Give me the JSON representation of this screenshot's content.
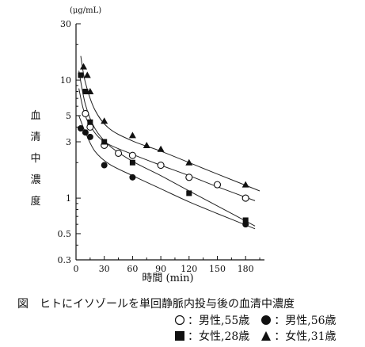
{
  "chart_data": {
    "type": "scatter",
    "y_scale": "log",
    "ylim": [
      0.3,
      30
    ],
    "xlim": [
      0,
      200
    ],
    "x_ticks": [
      "0",
      "30",
      "60",
      "90",
      "120",
      "150",
      "180"
    ],
    "y_ticks": [
      "0.3",
      "0.5",
      "1",
      "3",
      "5",
      "10",
      "30"
    ],
    "y_unit": "(μg/mL)",
    "ylabel": "血清中濃度",
    "xlabel": "時間 (min)",
    "series": [
      {
        "name": "男性,55歳",
        "marker": "open-circle",
        "x": [
          10,
          15,
          30,
          45,
          60,
          90,
          120,
          150,
          180
        ],
        "y": [
          5.2,
          4.0,
          2.8,
          2.4,
          2.3,
          1.9,
          1.5,
          1.3,
          1.0
        ],
        "curve_x": [
          3,
          8,
          15,
          30,
          60,
          90,
          120,
          150,
          190
        ],
        "curve_y": [
          8.5,
          5.6,
          4.1,
          3.0,
          2.35,
          1.9,
          1.55,
          1.25,
          0.95
        ]
      },
      {
        "name": "男性,56歳",
        "marker": "filled-circle",
        "x": [
          5,
          10,
          15,
          30,
          60,
          180
        ],
        "y": [
          3.9,
          3.6,
          3.3,
          1.9,
          1.5,
          0.6
        ],
        "curve_x": [
          3,
          10,
          20,
          35,
          60,
          90,
          120,
          150,
          190
        ],
        "curve_y": [
          5.0,
          3.6,
          2.5,
          1.95,
          1.55,
          1.2,
          0.93,
          0.74,
          0.55
        ]
      },
      {
        "name": "女性,28歳",
        "marker": "filled-square",
        "x": [
          5,
          10,
          15,
          30,
          60,
          120,
          180
        ],
        "y": [
          11.0,
          8.0,
          4.4,
          3.0,
          2.0,
          1.1,
          0.65
        ],
        "curve_x": [
          3,
          10,
          20,
          35,
          60,
          90,
          120,
          150,
          190
        ],
        "curve_y": [
          12.0,
          6.2,
          3.9,
          2.8,
          2.05,
          1.55,
          1.15,
          0.86,
          0.58
        ]
      },
      {
        "name": "女性,31歳",
        "marker": "filled-triangle",
        "x": [
          8,
          12,
          15,
          30,
          60,
          75,
          90,
          120,
          180
        ],
        "y": [
          13.0,
          11.0,
          8.0,
          4.5,
          3.4,
          2.8,
          2.6,
          2.0,
          1.3
        ],
        "curve_x": [
          5,
          10,
          20,
          35,
          60,
          90,
          120,
          150,
          195
        ],
        "curve_y": [
          16.0,
          9.5,
          5.6,
          3.9,
          3.05,
          2.5,
          2.0,
          1.6,
          1.15
        ]
      }
    ]
  },
  "caption": {
    "title": "図　ヒトにイソゾールを単回静脈内投与後の血清中濃度",
    "legend_row1": [
      {
        "symbol": "○",
        "label": "：男性,55歳"
      },
      {
        "symbol": "●",
        "label": "：男性,56歳"
      }
    ],
    "legend_row2": [
      {
        "symbol": "■",
        "label": "：女性,28歳"
      },
      {
        "symbol": "▲",
        "label": "：女性,31歳"
      }
    ]
  }
}
